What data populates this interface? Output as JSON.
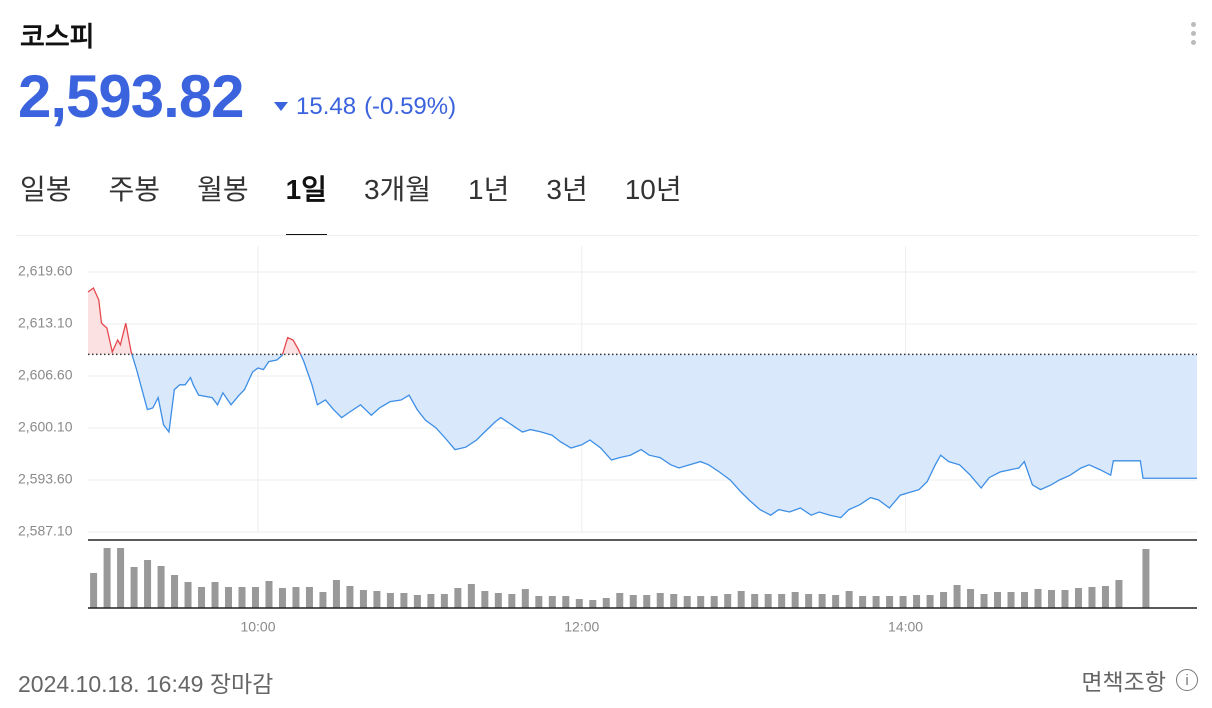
{
  "header": {
    "title": "코스피",
    "price": "2,593.82",
    "change": "15.48",
    "change_pct": "(-0.59%)"
  },
  "tabs": [
    "일봉",
    "주봉",
    "월봉",
    "1일",
    "3개월",
    "1년",
    "3년",
    "10년"
  ],
  "active_tab": 3,
  "chart_data": {
    "type": "line",
    "x": [
      537,
      539,
      541,
      542,
      544,
      546,
      548,
      549,
      551,
      553,
      555,
      559,
      561,
      563,
      565,
      567,
      569,
      571,
      573,
      575,
      576,
      578,
      583,
      585,
      587,
      590,
      593,
      595,
      598,
      600,
      602,
      604,
      607,
      609,
      611,
      613,
      615,
      617,
      620,
      622,
      625,
      628,
      631,
      634,
      638,
      642,
      645,
      649,
      653,
      656,
      659,
      662,
      666,
      670,
      673,
      677,
      681,
      684,
      688,
      690,
      694,
      698,
      701,
      705,
      709,
      712,
      716,
      720,
      723,
      727,
      731,
      734,
      738,
      742,
      745,
      749,
      753,
      756,
      760,
      764,
      767,
      771,
      775,
      779,
      782,
      786,
      790,
      793,
      797,
      801,
      805,
      808,
      812,
      816,
      819,
      823,
      827,
      830,
      834,
      838,
      842,
      845,
      848,
      851,
      853,
      856,
      860,
      864,
      868,
      871,
      875,
      879,
      882,
      884,
      887,
      890,
      894,
      897,
      901,
      905,
      908,
      912,
      916,
      917,
      927,
      928,
      948
    ],
    "values": [
      2617.1,
      2617.6,
      2616.1,
      2613.2,
      2612.6,
      2609.6,
      2611.1,
      2610.5,
      2613.2,
      2609.6,
      2607.4,
      2602.4,
      2602.6,
      2603.9,
      2600.5,
      2599.6,
      2604.9,
      2605.5,
      2605.5,
      2606.4,
      2605.5,
      2604.2,
      2603.9,
      2603.0,
      2604.5,
      2603.0,
      2604.2,
      2604.9,
      2607.1,
      2607.6,
      2607.4,
      2608.4,
      2608.6,
      2609.2,
      2611.4,
      2611.1,
      2609.9,
      2608.4,
      2605.5,
      2603.0,
      2603.6,
      2602.4,
      2601.4,
      2602.1,
      2603.0,
      2601.7,
      2602.6,
      2603.4,
      2603.6,
      2604.2,
      2602.4,
      2601.1,
      2600.1,
      2598.6,
      2597.4,
      2597.7,
      2598.6,
      2599.6,
      2600.9,
      2601.4,
      2600.5,
      2599.6,
      2599.9,
      2599.6,
      2599.2,
      2598.4,
      2597.6,
      2598.0,
      2598.6,
      2597.6,
      2596.1,
      2596.4,
      2596.7,
      2597.4,
      2596.7,
      2596.4,
      2595.5,
      2595.1,
      2595.5,
      2595.9,
      2595.5,
      2594.6,
      2593.6,
      2592.1,
      2591.1,
      2589.9,
      2589.2,
      2589.9,
      2589.6,
      2590.1,
      2589.2,
      2589.6,
      2589.2,
      2588.9,
      2589.9,
      2590.5,
      2591.4,
      2591.1,
      2590.1,
      2591.7,
      2592.1,
      2592.4,
      2593.4,
      2595.5,
      2596.7,
      2595.9,
      2595.5,
      2594.2,
      2592.6,
      2593.9,
      2594.6,
      2594.9,
      2595.1,
      2595.9,
      2593.0,
      2592.4,
      2593.0,
      2593.6,
      2594.2,
      2595.1,
      2595.5,
      2594.9,
      2594.2,
      2596.0,
      2596.0,
      2593.82,
      2593.82
    ],
    "base_value": 2609.3,
    "xlim": [
      537,
      948
    ],
    "xticks": [
      {
        "value": 600,
        "label": "10:00"
      },
      {
        "value": 720,
        "label": "12:00"
      },
      {
        "value": 840,
        "label": "14:00"
      }
    ],
    "ylim": [
      2587.1,
      2619.6
    ],
    "yticks": [
      {
        "value": 2587.1,
        "label": "2,587.10"
      },
      {
        "value": 2593.6,
        "label": "2,593.60"
      },
      {
        "value": 2600.1,
        "label": "2,600.10"
      },
      {
        "value": 2606.6,
        "label": "2,606.60"
      },
      {
        "value": 2613.1,
        "label": "2,613.10"
      },
      {
        "value": 2619.6,
        "label": "2,619.60"
      }
    ],
    "grid": true,
    "colors": {
      "up": "#e5494f",
      "up_fill": "#fbe1e2",
      "down": "#3d8ee6",
      "down_fill": "#d9e9fb"
    },
    "volume": {
      "x": [
        540,
        545,
        550,
        555,
        560,
        565,
        570,
        575,
        580,
        585,
        590,
        595,
        600,
        605,
        610,
        615,
        620,
        625,
        630,
        635,
        640,
        645,
        650,
        655,
        660,
        665,
        670,
        675,
        680,
        685,
        690,
        695,
        700,
        705,
        710,
        715,
        720,
        725,
        730,
        735,
        740,
        745,
        750,
        755,
        760,
        765,
        770,
        775,
        780,
        785,
        790,
        795,
        800,
        805,
        810,
        815,
        820,
        825,
        830,
        835,
        840,
        845,
        850,
        855,
        860,
        865,
        870,
        875,
        880,
        885,
        890,
        895,
        900,
        905,
        910,
        915,
        920,
        930
      ],
      "values": [
        35,
        60,
        60,
        41,
        48,
        42,
        33,
        26,
        21,
        26,
        21,
        21,
        21,
        27,
        20,
        21,
        21,
        16,
        28,
        22,
        18,
        17,
        15,
        15,
        13,
        14,
        14,
        20,
        24,
        17,
        15,
        14,
        19,
        12,
        12,
        12,
        9,
        8,
        10,
        15,
        13,
        13,
        15,
        14,
        12,
        12,
        12,
        14,
        17,
        14,
        14,
        14,
        16,
        14,
        14,
        13,
        17,
        12,
        12,
        12,
        12,
        13,
        13,
        16,
        23,
        19,
        14,
        16,
        16,
        16,
        19,
        18,
        18,
        20,
        21,
        22,
        28,
        59
      ],
      "ylim": [
        0,
        62
      ],
      "color": "#999999"
    }
  },
  "footer": {
    "timestamp": "2024.10.18. 16:49 장마감",
    "disclaimer": "면책조항"
  }
}
